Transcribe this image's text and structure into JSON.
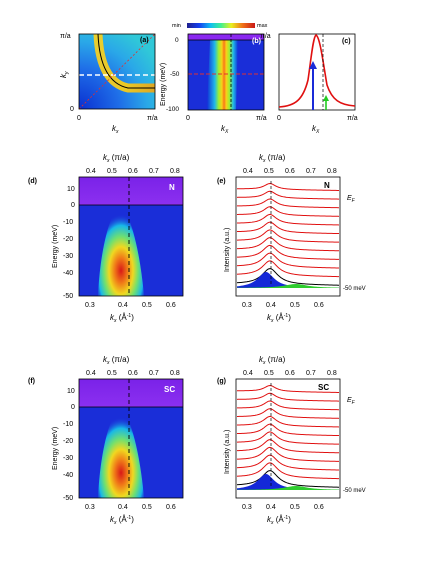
{
  "panels": {
    "a": {
      "tag": "(a)",
      "y_top": "π/a",
      "y_zero": "0",
      "x_zero": "0",
      "x_right": "π/a",
      "xlabel": "k",
      "xsub": "x",
      "ylabel": "k",
      "ysub": "y"
    },
    "b": {
      "tag": "(b)",
      "colorbar_min": "min",
      "colorbar_max": "max",
      "ylabel": "Energy (meV)",
      "yticks": [
        "0",
        "-50",
        "-100"
      ],
      "x_zero": "0",
      "x_right": "π/a",
      "xlabel": "k",
      "xsub": "X"
    },
    "c": {
      "tag": "(c)",
      "y_top": "π/a",
      "x_zero": "0",
      "x_right": "π/a",
      "xlabel": "k",
      "xsub": "X"
    },
    "d": {
      "tag": "(d)",
      "label": "N",
      "top_axis": "k",
      "top_sub": "x",
      "top_unit": " (π/a)",
      "top_ticks": [
        "0.4",
        "0.5",
        "0.6",
        "0.7",
        "0.8"
      ],
      "yticks": [
        "10",
        "0",
        "-10",
        "-20",
        "-30",
        "-40",
        "-50"
      ],
      "ylabel": "Energy (meV)",
      "xticks": [
        "0.3",
        "0.4",
        "0.5",
        "0.6"
      ],
      "xlabel": "k",
      "xsub": "x",
      "xunit": " (Å",
      "xunit_sup": "-1",
      "xunit_end": ")"
    },
    "e": {
      "tag": "(e)",
      "label": "N",
      "ef": "E",
      "ef_sub": "F",
      "bottom_label": "-50 meV",
      "top_axis": "k",
      "top_sub": "x",
      "top_unit": " (π/a)",
      "top_ticks": [
        "0.4",
        "0.5",
        "0.6",
        "0.7",
        "0.8"
      ],
      "ylabel": "Intensity (a.u.)",
      "xticks": [
        "0.3",
        "0.4",
        "0.5",
        "0.6"
      ],
      "xlabel": "k",
      "xsub": "x",
      "xunit": " (Å",
      "xunit_sup": "-1",
      "xunit_end": ")"
    },
    "f": {
      "tag": "(f)",
      "label": "SC",
      "top_axis": "k",
      "top_sub": "x",
      "top_unit": " (π/a)",
      "top_ticks": [
        "0.4",
        "0.5",
        "0.6",
        "0.7",
        "0.8"
      ],
      "yticks": [
        "10",
        "0",
        "-10",
        "-20",
        "-30",
        "-40",
        "-50"
      ],
      "ylabel": "Energy (meV)",
      "xticks": [
        "0.3",
        "0.4",
        "0.5",
        "0.6"
      ],
      "xlabel": "k",
      "xsub": "x",
      "xunit": " (Å",
      "xunit_sup": "-1",
      "xunit_end": ")"
    },
    "g": {
      "tag": "(g)",
      "label": "SC",
      "ef": "E",
      "ef_sub": "F",
      "bottom_label": "-50 meV",
      "top_axis": "k",
      "top_sub": "x",
      "top_unit": " (π/a)",
      "top_ticks": [
        "0.4",
        "0.5",
        "0.6",
        "0.7",
        "0.8"
      ],
      "ylabel": "Intensity (a.u.)",
      "xticks": [
        "0.3",
        "0.4",
        "0.5",
        "0.6"
      ],
      "xlabel": "k",
      "xsub": "x",
      "xunit": " (Å",
      "xunit_sup": "-1",
      "xunit_end": ")"
    }
  },
  "colors": {
    "curve": "#e01010",
    "arrow_blue": "#1a2bd8",
    "arrow_green": "#22cc22",
    "purple": "#8a28f0",
    "fill_blue": "#1428d8",
    "fill_green": "#2ecc2e"
  }
}
